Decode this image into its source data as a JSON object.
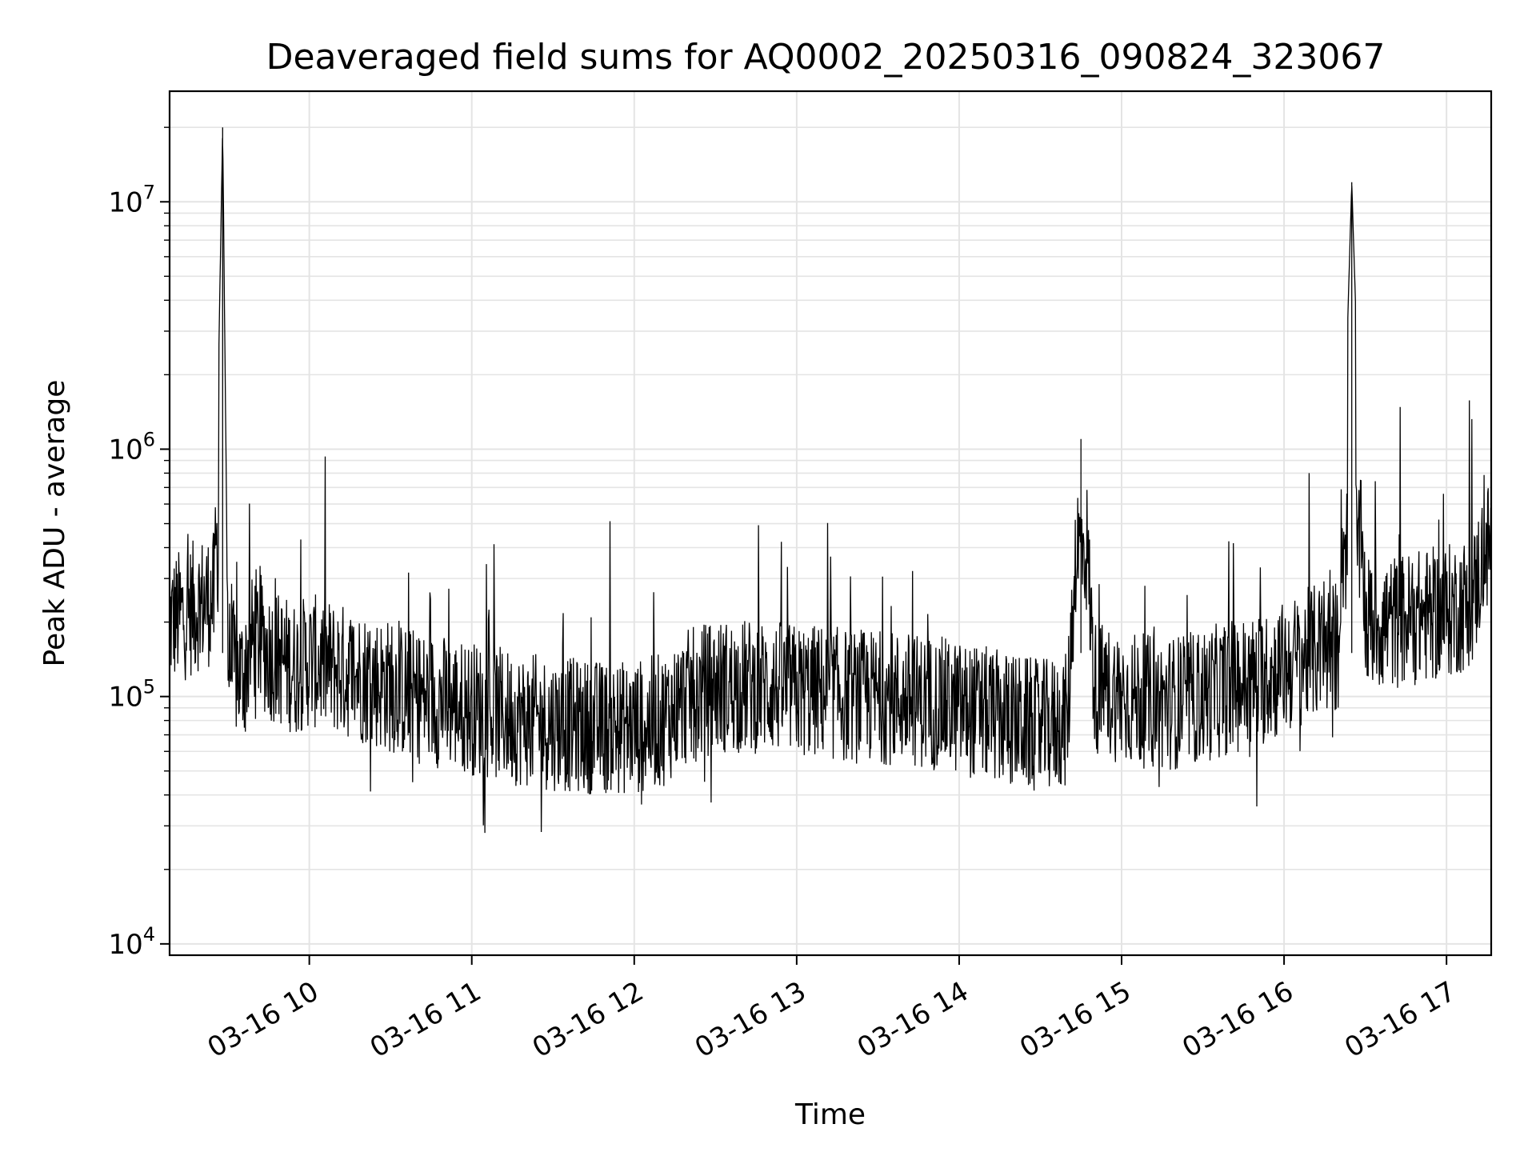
{
  "chart_data": {
    "type": "line",
    "title": "Deaveraged field sums for AQ0002_20250316_090824_323067",
    "xlabel": "Time",
    "ylabel": "Peak ADU - average",
    "y_scale": "log",
    "ylim": [
      9000,
      28000000
    ],
    "xlim": [
      "2025-03-16T09:08:24",
      "2025-03-16T17:16:30"
    ],
    "grid": true,
    "line_color": "#000000",
    "grid_color": "#e4e4e4",
    "x_ticks": [
      {
        "time": "2025-03-16T10:00:00",
        "label": "03-16 10"
      },
      {
        "time": "2025-03-16T11:00:00",
        "label": "03-16 11"
      },
      {
        "time": "2025-03-16T12:00:00",
        "label": "03-16 12"
      },
      {
        "time": "2025-03-16T13:00:00",
        "label": "03-16 13"
      },
      {
        "time": "2025-03-16T14:00:00",
        "label": "03-16 14"
      },
      {
        "time": "2025-03-16T15:00:00",
        "label": "03-16 15"
      },
      {
        "time": "2025-03-16T16:00:00",
        "label": "03-16 16"
      },
      {
        "time": "2025-03-16T17:00:00",
        "label": "03-16 17"
      }
    ],
    "y_ticks": [
      {
        "value": 10000,
        "base": "10",
        "exp": "4"
      },
      {
        "value": 100000,
        "base": "10",
        "exp": "5"
      },
      {
        "value": 1000000,
        "base": "10",
        "exp": "6"
      },
      {
        "value": 10000000,
        "base": "10",
        "exp": "7"
      }
    ],
    "series": [
      {
        "x": [
          "2025-03-16T09:08",
          "2025-03-16T09:15",
          "2025-03-16T09:20",
          "2025-03-16T09:25",
          "2025-03-16T09:28",
          "2025-03-16T09:30",
          "2025-03-16T09:35",
          "2025-03-16T09:40",
          "2025-03-16T09:45",
          "2025-03-16T09:50",
          "2025-03-16T09:55",
          "2025-03-16T10:00",
          "2025-03-16T10:10",
          "2025-03-16T10:20",
          "2025-03-16T10:30",
          "2025-03-16T10:40",
          "2025-03-16T10:50",
          "2025-03-16T11:00",
          "2025-03-16T11:10",
          "2025-03-16T11:20",
          "2025-03-16T11:30",
          "2025-03-16T11:40",
          "2025-03-16T11:50",
          "2025-03-16T12:00",
          "2025-03-16T12:10",
          "2025-03-16T12:20",
          "2025-03-16T12:30",
          "2025-03-16T12:40",
          "2025-03-16T12:50",
          "2025-03-16T13:00",
          "2025-03-16T13:10",
          "2025-03-16T13:20",
          "2025-03-16T13:30",
          "2025-03-16T13:40",
          "2025-03-16T13:50",
          "2025-03-16T14:00",
          "2025-03-16T14:10",
          "2025-03-16T14:20",
          "2025-03-16T14:30",
          "2025-03-16T14:40",
          "2025-03-16T14:45",
          "2025-03-16T14:50",
          "2025-03-16T15:00",
          "2025-03-16T15:10",
          "2025-03-16T15:20",
          "2025-03-16T15:30",
          "2025-03-16T15:40",
          "2025-03-16T15:50",
          "2025-03-16T16:00",
          "2025-03-16T16:10",
          "2025-03-16T16:20",
          "2025-03-16T16:25",
          "2025-03-16T16:30",
          "2025-03-16T16:40",
          "2025-03-16T16:50",
          "2025-03-16T17:00",
          "2025-03-16T17:05",
          "2025-03-16T17:10",
          "2025-03-16T17:16"
        ],
        "y": [
          200000,
          220000,
          240000,
          250000,
          20000000,
          140000,
          120000,
          180000,
          150000,
          140000,
          130000,
          140000,
          130000,
          120000,
          110000,
          100000,
          95000,
          90000,
          85000,
          80000,
          78000,
          76000,
          75000,
          75000,
          80000,
          100000,
          110000,
          110000,
          110000,
          105000,
          105000,
          100000,
          100000,
          98000,
          95000,
          90000,
          85000,
          80000,
          75000,
          80000,
          1100000,
          110000,
          100000,
          95000,
          95000,
          100000,
          110000,
          115000,
          130000,
          150000,
          160000,
          12000000,
          200000,
          200000,
          210000,
          220000,
          230000,
          250000,
          500000
        ]
      }
    ]
  }
}
